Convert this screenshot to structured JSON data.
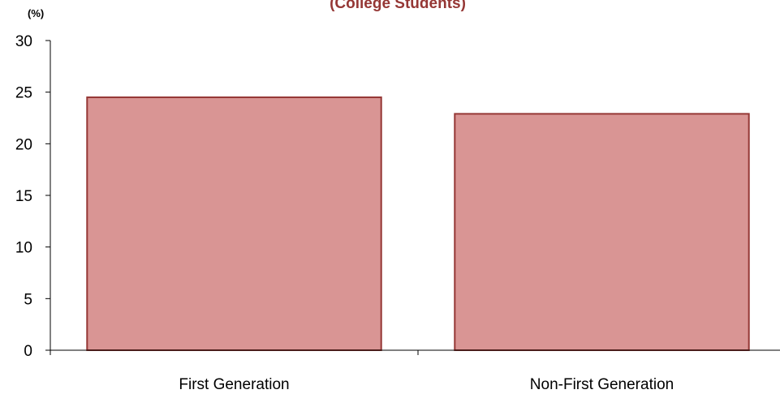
{
  "chart_data": {
    "type": "bar",
    "title": "(College Students)",
    "ylabel": "(%)",
    "xlabel": "",
    "categories": [
      "First Generation",
      "Non-First Generation"
    ],
    "values": [
      24.5,
      22.9
    ],
    "ylim": [
      0,
      30
    ],
    "yticks": [
      0,
      5,
      10,
      15,
      20,
      25,
      30
    ],
    "grid": false,
    "legend": "none"
  },
  "colors": {
    "bar_fill": "#d99594",
    "bar_stroke": "#953735",
    "title": "#953735",
    "axis": "#000000"
  }
}
